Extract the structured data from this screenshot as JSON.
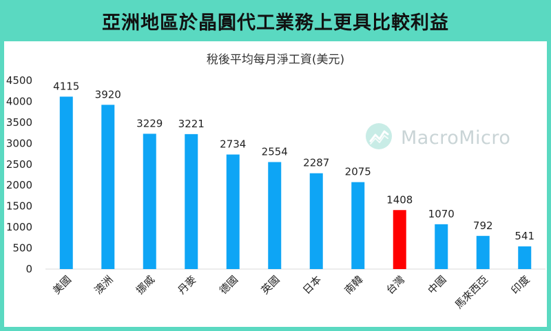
{
  "header": {
    "title": "亞洲地區於晶圓代工業務上更具比較利益"
  },
  "watermark": {
    "text": "MacroMicro",
    "icon": "macromicro-logo-icon",
    "color": "#c9d4d6"
  },
  "colors": {
    "banner": "#5ad9c1",
    "bar": "#0ea5f5",
    "highlight": "#ff0000"
  },
  "chart_data": {
    "type": "bar",
    "title": "稅後平均每月淨工資(美元)",
    "xlabel": "",
    "ylabel": "",
    "categories": [
      "美國",
      "澳洲",
      "挪威",
      "丹麥",
      "德國",
      "英國",
      "日本",
      "南韓",
      "台灣",
      "中國",
      "馬來西亞",
      "印度"
    ],
    "values": [
      4115,
      3920,
      3229,
      3221,
      2734,
      2554,
      2287,
      2075,
      1408,
      1070,
      792,
      541
    ],
    "highlight_category": "台灣",
    "ylim": [
      0,
      4500
    ],
    "yticks": [
      0,
      500,
      1000,
      1500,
      2000,
      2500,
      3000,
      3500,
      4000,
      4500
    ],
    "grid": false,
    "legend": "none"
  }
}
